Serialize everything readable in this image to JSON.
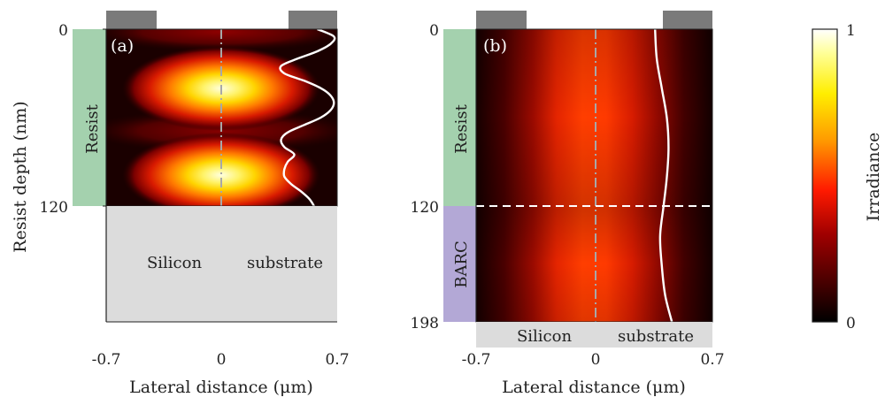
{
  "chart_data": [
    {
      "panel_label": "(a)",
      "type": "heatmap",
      "xlabel": "Lateral distance (μm)",
      "ylabel": "Resist depth (nm)",
      "x_ticks": [
        "-0.7",
        "0",
        "0.7"
      ],
      "y_ticks": [
        "0",
        "120"
      ],
      "xlim": [
        -0.7,
        0.7
      ],
      "ylim": [
        0,
        120
      ],
      "layers": [
        {
          "name": "Resist",
          "from": 0,
          "to": 120,
          "color": "#a4d1ae"
        }
      ],
      "substrate_text": [
        "Silicon",
        "substrate"
      ],
      "mask_features": [
        [
          -0.7,
          -0.4
        ],
        [
          0.4,
          0.7
        ]
      ],
      "hotspots": [
        {
          "x": 0,
          "y": 25,
          "peak": 1.0
        },
        {
          "x": 0,
          "y": 93,
          "peak": 1.0
        }
      ],
      "profile_curve_depth": [
        0,
        5,
        10,
        15,
        20,
        25,
        30,
        35,
        40,
        45,
        50,
        55,
        60,
        65,
        70,
        75,
        80,
        85,
        90,
        95,
        100,
        105,
        110,
        115,
        120
      ],
      "profile_curve_x": [
        0.58,
        0.68,
        0.66,
        0.58,
        0.46,
        0.36,
        0.38,
        0.5,
        0.6,
        0.66,
        0.68,
        0.66,
        0.6,
        0.5,
        0.4,
        0.36,
        0.38,
        0.44,
        0.4,
        0.38,
        0.38,
        0.42,
        0.48,
        0.53,
        0.56
      ]
    },
    {
      "panel_label": "(b)",
      "type": "heatmap",
      "xlabel": "Lateral distance (μm)",
      "y_ticks": [
        "0",
        "120",
        "198"
      ],
      "x_ticks": [
        "-0.7",
        "0",
        "0.7"
      ],
      "xlim": [
        -0.7,
        0.7
      ],
      "ylim": [
        0,
        198
      ],
      "interface_depth": 120,
      "layers": [
        {
          "name": "Resist",
          "from": 0,
          "to": 120,
          "color": "#a4d1ae"
        },
        {
          "name": "BARC",
          "from": 120,
          "to": 198,
          "color": "#b3a8d6"
        }
      ],
      "substrate_text": [
        "Silicon",
        "substrate"
      ],
      "mask_features": [
        [
          -0.7,
          -0.4
        ],
        [
          0.4,
          0.7
        ]
      ],
      "profile_curve_depth": [
        0,
        20,
        40,
        60,
        80,
        100,
        120,
        140,
        160,
        180,
        198
      ],
      "profile_curve_x": [
        0.36,
        0.37,
        0.4,
        0.43,
        0.44,
        0.43,
        0.41,
        0.39,
        0.4,
        0.42,
        0.46
      ]
    }
  ],
  "colorbar": {
    "label": "Irradiance",
    "min_label": "0",
    "max_label": "1",
    "colormap": "hot"
  }
}
